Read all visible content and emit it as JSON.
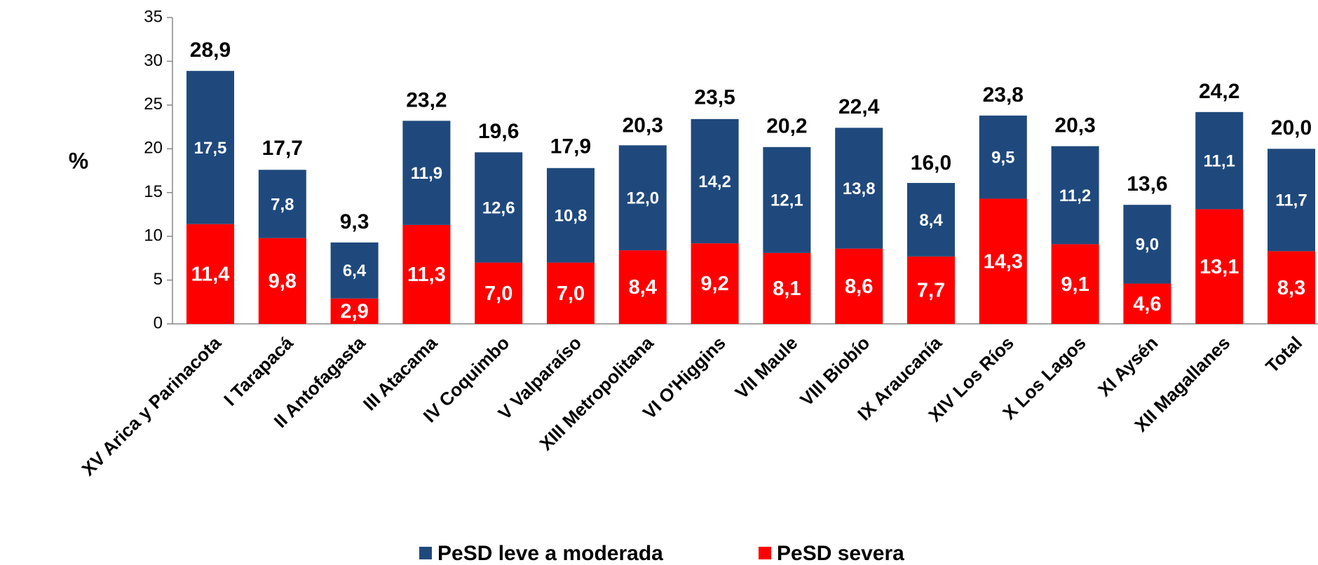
{
  "chart_data": {
    "type": "stacked_bar",
    "y_label": "%",
    "categories": [
      "XV Arica y Parinacota",
      "I Tarapacá",
      "II Antofagasta",
      "III Atacama",
      "IV Coquimbo",
      "V Valparaíso",
      "XIII Metropolitana",
      "VI O'Higgins",
      "VII Maule",
      "VIII Biobío",
      "IX Araucanía",
      "XIV Los Ríos",
      "X Los Lagos",
      "XI Aysén",
      "XII Magallanes",
      "Total"
    ],
    "series": [
      {
        "name": "PeSD leve a moderada",
        "color": "#1f497d",
        "values": [
          17.5,
          7.8,
          6.4,
          11.9,
          12.6,
          10.8,
          12.0,
          14.2,
          12.1,
          13.8,
          8.4,
          9.5,
          11.2,
          9.0,
          11.1,
          11.7
        ],
        "value_labels": [
          "17,5",
          "7,8",
          "6,4",
          "11,9",
          "12,6",
          "10,8",
          "12,0",
          "14,2",
          "12,1",
          "13,8",
          "8,4",
          "9,5",
          "11,2",
          "9,0",
          "11,1",
          "11,7"
        ]
      },
      {
        "name": "PeSD severa",
        "color": "#ff0000",
        "values": [
          11.4,
          9.8,
          2.9,
          11.3,
          7.0,
          7.0,
          8.4,
          9.2,
          8.1,
          8.6,
          7.7,
          14.3,
          9.1,
          4.6,
          13.1,
          8.3
        ],
        "value_labels": [
          "11,4",
          "9,8",
          "2,9",
          "11,3",
          "7,0",
          "7,0",
          "8,4",
          "9,2",
          "8,1",
          "8,6",
          "7,7",
          "14,3",
          "9,1",
          "4,6",
          "13,1",
          "8,3"
        ]
      }
    ],
    "totals": [
      28.9,
      17.7,
      9.3,
      23.2,
      19.6,
      17.9,
      20.3,
      23.5,
      20.2,
      22.4,
      16.0,
      23.8,
      20.3,
      13.6,
      24.2,
      20.0
    ],
    "total_labels": [
      "28,9",
      "17,7",
      "9,3",
      "23,2",
      "19,6",
      "17,9",
      "20,3",
      "23,5",
      "20,2",
      "22,4",
      "16,0",
      "23,8",
      "20,3",
      "13,6",
      "24,2",
      "20,0"
    ],
    "ylim": [
      0,
      35
    ],
    "yticks": [
      0,
      5,
      10,
      15,
      20,
      25,
      30,
      35
    ],
    "legend": "bottom"
  }
}
